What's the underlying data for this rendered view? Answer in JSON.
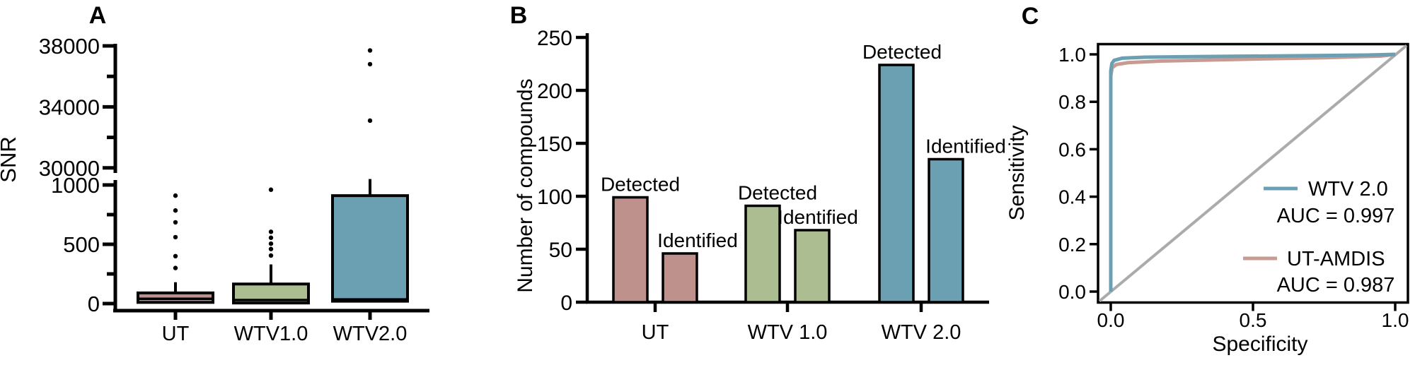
{
  "figure": {
    "panel_labels": [
      "A",
      "B",
      "C"
    ]
  },
  "colors": {
    "rose": "#BF918D",
    "green": "#ACBD92",
    "blue": "#6BA0B2",
    "roc_rose": "#C89A94",
    "diagonal_gray": "#ABABAB",
    "axis_black": "#000000"
  },
  "chart_data": [
    {
      "id": "A",
      "type": "boxplot",
      "panel_label": "A",
      "ylabel": "SNR",
      "categories": [
        "UT",
        "WTV1.0",
        "WTV2.0"
      ],
      "y_axis": {
        "broken": true,
        "lower_ticks": [
          0,
          500,
          1000
        ],
        "lower_minor_ticks": [
          250,
          750
        ],
        "upper_ticks": [
          30000,
          34000,
          38000
        ],
        "upper_minor_ticks": [
          32000,
          36000
        ],
        "break_between": [
          1000,
          30000
        ]
      },
      "boxes": [
        {
          "category": "UT",
          "color": "rose",
          "q1": 10,
          "median": 40,
          "q3": 90,
          "whisker_high": 180,
          "outliers": [
            300,
            400,
            560,
            685,
            785,
            910
          ]
        },
        {
          "category": "WTV1.0",
          "color": "green",
          "q1": 5,
          "median": 30,
          "q3": 165,
          "whisker_high": 330,
          "outliers": [
            405,
            460,
            505,
            555,
            605,
            960
          ]
        },
        {
          "category": "WTV2.0",
          "color": "blue",
          "q1": 20,
          "median": 35,
          "q3": 910,
          "whisker_high": 1050,
          "outliers": [
            33100,
            36800,
            37700
          ]
        }
      ]
    },
    {
      "id": "B",
      "type": "bar",
      "panel_label": "B",
      "ylabel": "Number of compounds",
      "ylim": [
        0,
        250
      ],
      "yticks": [
        0,
        50,
        100,
        150,
        200,
        250
      ],
      "categories": [
        "UT",
        "WTV 1.0",
        "WTV 2.0"
      ],
      "series": [
        {
          "name": "Detected",
          "values": [
            99,
            91,
            224
          ]
        },
        {
          "name": "Identified",
          "values": [
            46,
            68,
            135
          ]
        }
      ],
      "category_colors": [
        "rose",
        "green",
        "blue"
      ],
      "bars_annotated_with_series_name": true
    },
    {
      "id": "C",
      "type": "line",
      "panel_label": "C",
      "xlabel": "Specificity",
      "ylabel": "Sensitivity",
      "xlim": [
        0,
        1
      ],
      "ylim": [
        0,
        1
      ],
      "xticks": [
        "0.0",
        "0.5",
        "1.0"
      ],
      "yticks": [
        "0.0",
        "0.2",
        "0.4",
        "0.6",
        "0.8",
        "1.0"
      ],
      "diagonal_reference": true,
      "legend_position": "bottom-right",
      "series": [
        {
          "name": "WTV 2.0",
          "auc_label": "AUC = 0.997",
          "color": "blue",
          "points": [
            [
              0,
              0
            ],
            [
              0,
              0.93
            ],
            [
              0.004,
              0.962
            ],
            [
              0.012,
              0.975
            ],
            [
              0.04,
              0.984
            ],
            [
              0.12,
              0.988
            ],
            [
              0.35,
              0.991
            ],
            [
              0.65,
              0.994
            ],
            [
              0.9,
              0.997
            ],
            [
              1,
              1
            ]
          ]
        },
        {
          "name": "UT-AMDIS",
          "auc_label": "AUC = 0.987",
          "color": "roc_rose",
          "points": [
            [
              0,
              0
            ],
            [
              0,
              0.91
            ],
            [
              0.005,
              0.944
            ],
            [
              0.02,
              0.957
            ],
            [
              0.06,
              0.965
            ],
            [
              0.18,
              0.972
            ],
            [
              0.45,
              0.979
            ],
            [
              0.75,
              0.986
            ],
            [
              0.95,
              0.993
            ],
            [
              1,
              1
            ]
          ]
        }
      ]
    }
  ]
}
